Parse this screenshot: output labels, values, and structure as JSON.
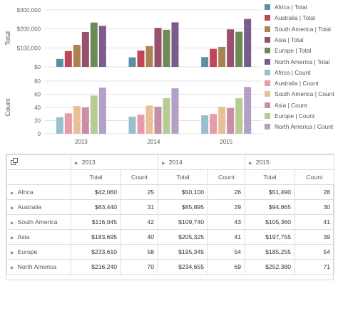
{
  "chart_data": [
    {
      "type": "bar",
      "categories": [
        "2013",
        "2014",
        "2015"
      ],
      "ylabel": "Total",
      "ylim": [
        0,
        300000
      ],
      "y_ticks": [
        "$0",
        "$100,000",
        "$200,000",
        "$300,000"
      ],
      "series": [
        {
          "name": "Africa | Total",
          "color": "#5b8fa3",
          "values": [
            42060,
            50100,
            51490
          ]
        },
        {
          "name": "Australia | Total",
          "color": "#c0475a",
          "values": [
            83440,
            85895,
            94865
          ]
        },
        {
          "name": "South America | Total",
          "color": "#a98452",
          "values": [
            116045,
            109740,
            105360
          ]
        },
        {
          "name": "Asia | Total",
          "color": "#99506f",
          "values": [
            183695,
            205325,
            197755
          ]
        },
        {
          "name": "Europe | Total",
          "color": "#6f8b55",
          "values": [
            233610,
            195345,
            185255
          ]
        },
        {
          "name": "North America | Total",
          "color": "#7b5c8f",
          "values": [
            216240,
            234655,
            252380
          ]
        }
      ]
    },
    {
      "type": "bar",
      "categories": [
        "2013",
        "2014",
        "2015"
      ],
      "ylabel": "Count",
      "ylim": [
        0,
        80
      ],
      "y_ticks": [
        "0",
        "20",
        "40",
        "60",
        "80"
      ],
      "series": [
        {
          "name": "Africa | Count",
          "color": "#97bfcc",
          "values": [
            25,
            26,
            28
          ]
        },
        {
          "name": "Australia | Count",
          "color": "#e89aa8",
          "values": [
            31,
            29,
            30
          ]
        },
        {
          "name": "South America | Count",
          "color": "#e8c096",
          "values": [
            42,
            43,
            41
          ]
        },
        {
          "name": "Asia | Count",
          "color": "#c88ea8",
          "values": [
            40,
            41,
            39
          ]
        },
        {
          "name": "Europe | Count",
          "color": "#b6cc92",
          "values": [
            58,
            54,
            54
          ]
        },
        {
          "name": "North America | Count",
          "color": "#b49fc6",
          "values": [
            70,
            69,
            71
          ]
        }
      ]
    }
  ],
  "grid": {
    "years": [
      "2013",
      "2014",
      "2015"
    ],
    "measures": [
      "Total",
      "Count"
    ],
    "rows": [
      {
        "label": "Africa",
        "cells": [
          "$42,060",
          "25",
          "$50,100",
          "26",
          "$51,490",
          "28"
        ]
      },
      {
        "label": "Australia",
        "cells": [
          "$83,440",
          "31",
          "$85,895",
          "29",
          "$94,865",
          "30"
        ]
      },
      {
        "label": "South America",
        "cells": [
          "$116,045",
          "42",
          "$109,740",
          "43",
          "$105,360",
          "41"
        ]
      },
      {
        "label": "Asia",
        "cells": [
          "$183,695",
          "40",
          "$205,325",
          "41",
          "$197,755",
          "39"
        ]
      },
      {
        "label": "Europe",
        "cells": [
          "$233,610",
          "58",
          "$195,345",
          "54",
          "$185,255",
          "54"
        ]
      },
      {
        "label": "North America",
        "cells": [
          "$216,240",
          "70",
          "$234,655",
          "69",
          "$252,380",
          "71"
        ]
      }
    ]
  }
}
